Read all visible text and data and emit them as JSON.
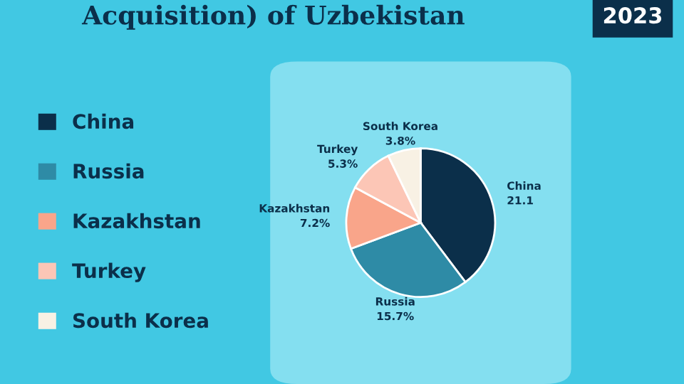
{
  "chart_data": {
    "type": "pie",
    "title": "Acquisition) of Uzbekistan",
    "subtitle": "2023",
    "categories": [
      "China",
      "Russia",
      "Kazakhstan",
      "Turkey",
      "South Korea"
    ],
    "values": [
      21.1,
      15.7,
      7.2,
      5.3,
      3.8
    ],
    "value_labels": [
      "21.1",
      "15.7%",
      "7.2%",
      "5.3%",
      "3.8%"
    ],
    "colors": [
      "#0b2f4a",
      "#2e8ba6",
      "#f9a58a",
      "#fcc6b6",
      "#f8f1e4"
    ],
    "legend": "left"
  }
}
